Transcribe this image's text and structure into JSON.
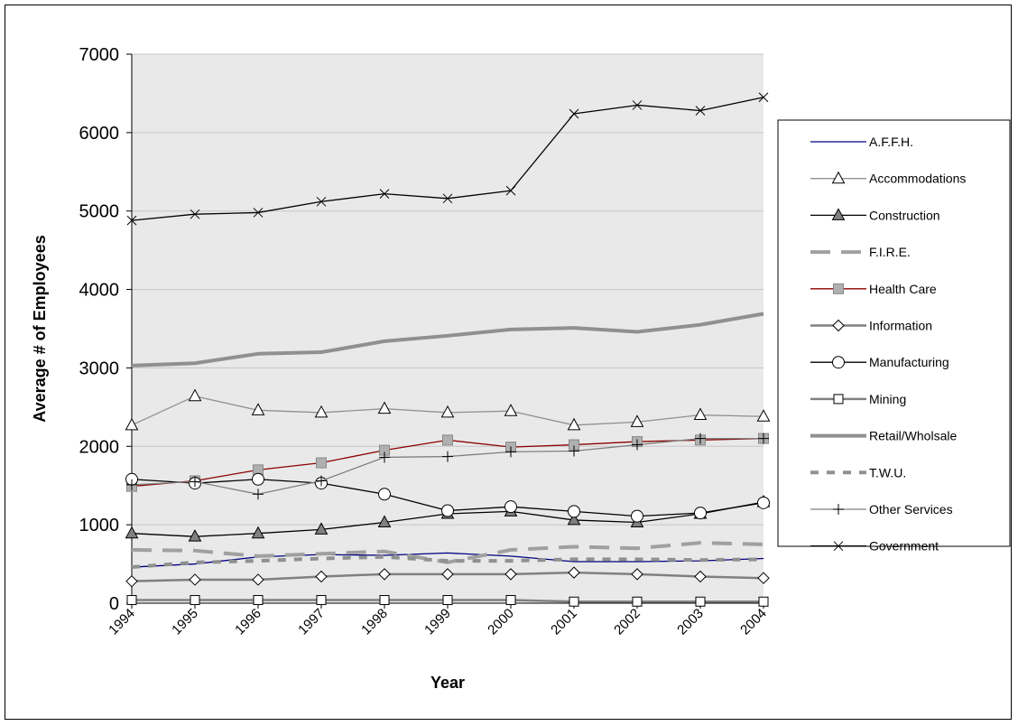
{
  "chart_data": {
    "type": "line",
    "title": "",
    "xlabel": "Year",
    "ylabel": "Average # of Employees",
    "x": [
      "1994",
      "1995",
      "1996",
      "1997",
      "1998",
      "1999",
      "2000",
      "2001",
      "2002",
      "2003",
      "2004"
    ],
    "ylim": [
      0,
      7000
    ],
    "yticks": [
      "0",
      "1000",
      "2000",
      "3000",
      "4000",
      "5000",
      "6000",
      "7000"
    ],
    "grid": true,
    "legend_position": "right",
    "series": [
      {
        "name": "A.F.F.H.",
        "color": "#000080",
        "style": "solid",
        "width": 1.3,
        "marker": "none",
        "values": [
          460,
          500,
          590,
          620,
          610,
          640,
          600,
          530,
          530,
          540,
          570
        ]
      },
      {
        "name": "Accommodations",
        "color": "#909090",
        "style": "solid",
        "width": 1.3,
        "marker": "triangle-open",
        "values": [
          2270,
          2640,
          2460,
          2430,
          2480,
          2430,
          2450,
          2270,
          2310,
          2400,
          2380
        ]
      },
      {
        "name": "Construction",
        "color": "#000000",
        "style": "solid",
        "width": 1.3,
        "marker": "triangle-filled",
        "values": [
          890,
          850,
          890,
          940,
          1030,
          1140,
          1170,
          1060,
          1030,
          1140,
          1290
        ]
      },
      {
        "name": "F.I.R.E.",
        "color": "#a0a0a0",
        "style": "dash-long",
        "width": 4,
        "marker": "none",
        "values": [
          680,
          670,
          600,
          630,
          660,
          520,
          680,
          720,
          700,
          770,
          750
        ]
      },
      {
        "name": "Health Care",
        "color": "#8b0000",
        "style": "solid",
        "width": 1.3,
        "marker": "square-gray",
        "values": [
          1490,
          1560,
          1700,
          1790,
          1950,
          2080,
          1990,
          2020,
          2060,
          2080,
          2100
        ]
      },
      {
        "name": "Information",
        "color": "#808080",
        "style": "solid",
        "width": 2.5,
        "marker": "diamond-open",
        "values": [
          280,
          300,
          300,
          340,
          370,
          370,
          370,
          390,
          370,
          340,
          320
        ]
      },
      {
        "name": "Manufacturing",
        "color": "#000000",
        "style": "solid",
        "width": 1.3,
        "marker": "circle-open",
        "values": [
          1580,
          1530,
          1580,
          1530,
          1390,
          1180,
          1230,
          1170,
          1110,
          1150,
          1280
        ]
      },
      {
        "name": "Mining",
        "color": "#808080",
        "style": "solid",
        "width": 2.5,
        "marker": "square-open",
        "values": [
          40,
          40,
          40,
          40,
          40,
          40,
          40,
          20,
          20,
          20,
          20
        ]
      },
      {
        "name": "Retail/Wholsale",
        "color": "#909090",
        "style": "solid",
        "width": 4,
        "marker": "none",
        "values": [
          3030,
          3060,
          3180,
          3200,
          3340,
          3410,
          3490,
          3510,
          3460,
          3550,
          3690
        ]
      },
      {
        "name": "T.W.U.",
        "color": "#909090",
        "style": "dash-short",
        "width": 4,
        "marker": "none",
        "values": [
          460,
          520,
          540,
          570,
          590,
          540,
          540,
          560,
          560,
          550,
          560
        ]
      },
      {
        "name": "Other Services",
        "color": "#808080",
        "style": "solid",
        "width": 1.3,
        "marker": "plus",
        "values": [
          1510,
          1550,
          1390,
          1560,
          1860,
          1870,
          1930,
          1940,
          2020,
          2100,
          2100
        ]
      },
      {
        "name": "Government",
        "color": "#000000",
        "style": "solid",
        "width": 1.3,
        "marker": "x",
        "values": [
          4880,
          4960,
          4980,
          5120,
          5220,
          5160,
          5260,
          6240,
          6350,
          6280,
          6450
        ]
      }
    ]
  }
}
